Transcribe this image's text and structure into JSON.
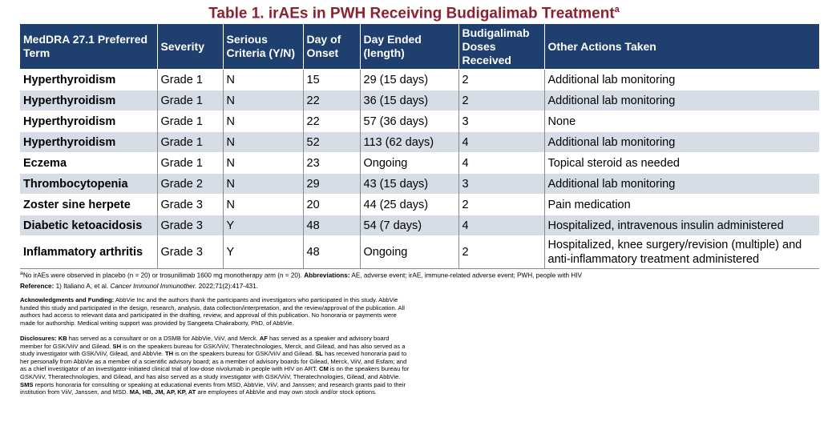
{
  "title": {
    "text": "Table 1. irAEs in PWH Receiving Budigalimab Treatment",
    "sup": "a"
  },
  "table": {
    "headers": [
      "MedDRA 27.1 Preferred Term",
      "Severity",
      "Serious Criteria (Y/N)",
      "Day of Onset",
      "Day Ended (length)",
      "Budigalimab Doses Received",
      "Other Actions Taken"
    ],
    "rows": [
      [
        "Hyperthyroidism",
        "Grade 1",
        "N",
        "15",
        "29 (15 days)",
        "2",
        "Additional lab monitoring"
      ],
      [
        "Hyperthyroidism",
        "Grade 1",
        "N",
        "22",
        "36 (15 days)",
        "2",
        "Additional lab monitoring"
      ],
      [
        "Hyperthyroidism",
        "Grade 1",
        "N",
        "22",
        "57 (36 days)",
        "3",
        "None"
      ],
      [
        "Hyperthyroidism",
        "Grade 1",
        "N",
        "52",
        "113 (62 days)",
        "4",
        "Additional lab monitoring"
      ],
      [
        "Eczema",
        "Grade 1",
        "N",
        "23",
        "Ongoing",
        "4",
        "Topical steroid as needed"
      ],
      [
        "Thrombocytopenia",
        "Grade 2",
        "N",
        "29",
        "43 (15 days)",
        "3",
        "Additional lab monitoring"
      ],
      [
        "Zoster sine herpete",
        "Grade 3",
        "N",
        "20",
        "44 (25 days)",
        "2",
        "Pain medication"
      ],
      [
        "Diabetic ketoacidosis",
        "Grade 3",
        "Y",
        "48",
        "54 (7 days)",
        "4",
        "Hospitalized, intravenous insulin administered"
      ],
      [
        "Inflammatory arthritis",
        "Grade 3",
        "Y",
        "48",
        "Ongoing",
        "2",
        "Hospitalized, knee surgery/revision (multiple) and anti-inflammatory treatment administered"
      ]
    ]
  },
  "footnote": {
    "sup": "a",
    "text": "No irAEs were observed in placebo (n = 20) or trosunilimab 1600 mg monotherapy arm (n = 20).",
    "abbrev_label": "Abbreviations:",
    "abbrev_text": "AE, adverse event; irAE, immune-related adverse event; PWH, people with HIV"
  },
  "reference": {
    "label": "Reference:",
    "pre": "1) Italiano A, et al.",
    "journal": "Cancer Immunol Immunother.",
    "post": "2022;71(2):417-431."
  },
  "acknowledgments": {
    "label": "Acknowledgments and Funding:",
    "text": "AbbVie Inc and the authors thank the participants and investigators who participated in this study. AbbVie funded this study and participated in the design, research, analysis, data collection/interpretation, and the review/approval of the publication. All authors had access to relevant data and participated in the drafting, review, and approval of this publication. No honoraria or payments were made for authorship. Medical writing support was provided by Sangeeta Chakraborty, PhD, of AbbVie."
  },
  "disclosures": {
    "label": "Disclosures:",
    "parts": [
      {
        "b": "KB",
        "t": " has served as a consultant or on a DSMB for AbbVie, ViiV, and Merck. "
      },
      {
        "b": "AF",
        "t": " has served as a speaker and advisory board member for GSK/ViiV and Gilead. "
      },
      {
        "b": "SH",
        "t": " is on the speakers bureau for GSK/ViiV, Theratechnologies, Merck, and Gilead, and has also served as a study investigator with GSK/ViiV, Gilead, and AbbVie. "
      },
      {
        "b": "TH",
        "t": " is on the speakers bureau for GSK/ViiV and Gilead. "
      },
      {
        "b": "SL",
        "t": " has received honoraria paid to her personally from AbbVie as a member of a scientific advisory board; as a member of advisory boards for Gilead, Merck, ViiV, and Esfam; and as a chief investigator of an investigator-initiated clinical trial of low-dose nivolumab in people with HIV on ART. "
      },
      {
        "b": "CM",
        "t": " is on the speakers bureau for GSK/ViiV, Theratechnologies, and  Gilead, and has also served as a study investigator with GSK/ViiV, Theratechnologies, Gilead, and AbbVie. "
      },
      {
        "b": "SMS",
        "t": " reports honoraria for consulting or speaking at educational events from MSD, AbbVie, ViiV, and Janssen; and research grants paid to their institution from ViiV, Janssen, and MSD. "
      },
      {
        "b": "MA, HB, JM, AP, KP, AT",
        "t": " are employees of AbbVie and may own stock and/or stock options."
      }
    ]
  }
}
